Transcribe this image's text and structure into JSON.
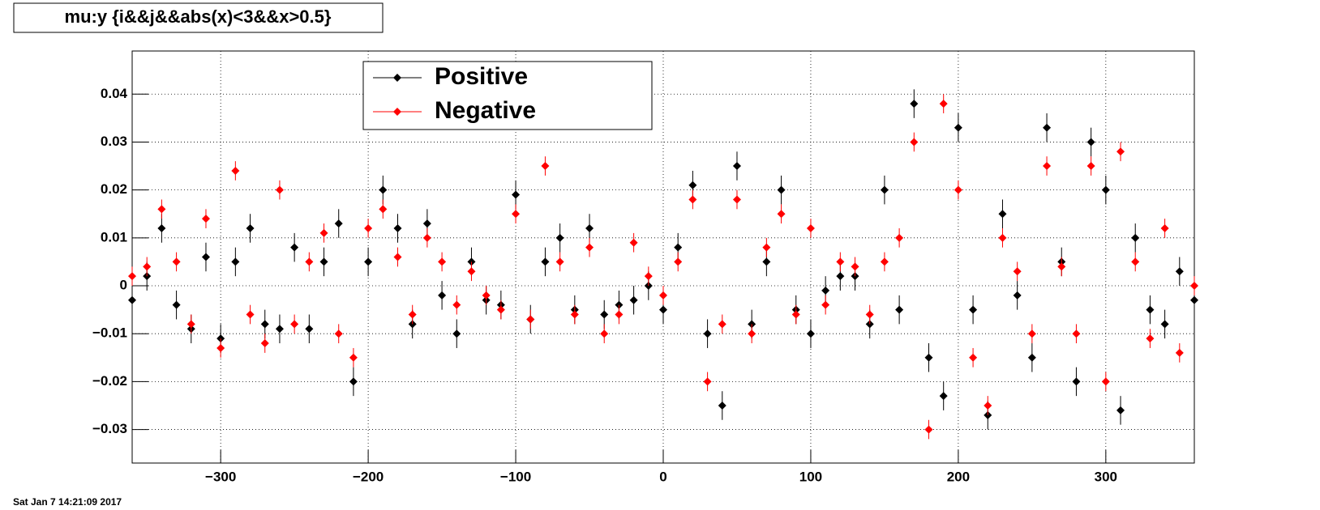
{
  "chart_data": {
    "type": "scatter",
    "title": "mu:y {i&&j&&abs(x)<3&&x>0.5}",
    "footer": "Sat Jan  7 14:21:09 2017",
    "x": [
      -360,
      -350,
      -340,
      -330,
      -320,
      -310,
      -300,
      -290,
      -280,
      -270,
      -260,
      -250,
      -240,
      -230,
      -220,
      -210,
      -200,
      -190,
      -180,
      -170,
      -160,
      -150,
      -140,
      -130,
      -120,
      -110,
      -100,
      -90,
      -80,
      -70,
      -60,
      -50,
      -40,
      -30,
      -20,
      -10,
      0,
      10,
      20,
      30,
      40,
      50,
      60,
      70,
      80,
      90,
      100,
      110,
      120,
      130,
      140,
      150,
      160,
      170,
      180,
      190,
      200,
      210,
      220,
      230,
      240,
      250,
      260,
      270,
      280,
      290,
      300,
      310,
      320,
      330,
      340,
      350,
      360
    ],
    "series": [
      {
        "name": "Positive",
        "color": "#000000",
        "values": [
          -0.003,
          0.002,
          0.012,
          -0.004,
          -0.009,
          0.006,
          -0.011,
          0.005,
          0.012,
          -0.008,
          -0.009,
          0.008,
          -0.009,
          0.005,
          0.013,
          -0.02,
          0.005,
          0.02,
          0.012,
          -0.008,
          0.013,
          -0.002,
          -0.01,
          0.005,
          -0.003,
          -0.004,
          0.019,
          -0.007,
          0.005,
          0.01,
          -0.005,
          0.012,
          -0.006,
          -0.004,
          -0.003,
          0,
          -0.005,
          0.008,
          0.021,
          -0.01,
          -0.025,
          0.025,
          -0.008,
          0.005,
          0.02,
          -0.005,
          -0.01,
          -0.001,
          0.002,
          0.002,
          -0.008,
          0.02,
          -0.005,
          0.038,
          -0.015,
          -0.023,
          0.033,
          -0.005,
          -0.027,
          0.015,
          -0.002,
          -0.015,
          0.033,
          0.005,
          -0.02,
          0.03,
          0.02,
          -0.026,
          0.01,
          -0.005,
          -0.008,
          0.003,
          -0.003
        ],
        "errors": [
          0.003,
          0.003,
          0.003,
          0.003,
          0.003,
          0.003,
          0.003,
          0.003,
          0.003,
          0.003,
          0.003,
          0.003,
          0.003,
          0.003,
          0.003,
          0.003,
          0.003,
          0.003,
          0.003,
          0.003,
          0.003,
          0.003,
          0.003,
          0.003,
          0.003,
          0.003,
          0.003,
          0.003,
          0.003,
          0.003,
          0.003,
          0.003,
          0.003,
          0.003,
          0.003,
          0.003,
          0.003,
          0.003,
          0.003,
          0.003,
          0.003,
          0.003,
          0.003,
          0.003,
          0.003,
          0.003,
          0.003,
          0.003,
          0.003,
          0.003,
          0.003,
          0.003,
          0.003,
          0.003,
          0.003,
          0.003,
          0.003,
          0.003,
          0.003,
          0.003,
          0.003,
          0.003,
          0.003,
          0.003,
          0.003,
          0.003,
          0.003,
          0.003,
          0.003,
          0.003,
          0.003,
          0.003,
          0.003
        ]
      },
      {
        "name": "Negative",
        "color": "#ff0000",
        "values": [
          0.002,
          0.004,
          0.016,
          0.005,
          -0.008,
          0.014,
          -0.013,
          0.024,
          -0.006,
          -0.012,
          0.02,
          -0.008,
          0.005,
          0.011,
          -0.01,
          -0.015,
          0.012,
          0.016,
          0.006,
          -0.006,
          0.01,
          0.005,
          -0.004,
          0.003,
          -0.002,
          -0.005,
          0.015,
          -0.007,
          0.025,
          0.005,
          -0.006,
          0.008,
          -0.01,
          -0.006,
          0.009,
          0.002,
          -0.002,
          0.005,
          0.018,
          -0.02,
          -0.008,
          0.018,
          -0.01,
          0.008,
          0.015,
          -0.006,
          0.012,
          -0.004,
          0.005,
          0.004,
          -0.006,
          0.005,
          0.01,
          0.03,
          -0.03,
          0.038,
          0.02,
          -0.015,
          -0.025,
          0.01,
          0.003,
          -0.01,
          0.025,
          0.004,
          -0.01,
          0.025,
          -0.02,
          0.028,
          0.005,
          -0.011,
          0.012,
          -0.014,
          0
        ],
        "errors": [
          0.002,
          0.002,
          0.002,
          0.002,
          0.002,
          0.002,
          0.002,
          0.002,
          0.002,
          0.002,
          0.002,
          0.002,
          0.002,
          0.002,
          0.002,
          0.002,
          0.002,
          0.002,
          0.002,
          0.002,
          0.002,
          0.002,
          0.002,
          0.002,
          0.002,
          0.002,
          0.002,
          0.002,
          0.002,
          0.002,
          0.002,
          0.002,
          0.002,
          0.002,
          0.002,
          0.002,
          0.002,
          0.002,
          0.002,
          0.002,
          0.002,
          0.002,
          0.002,
          0.002,
          0.002,
          0.002,
          0.002,
          0.002,
          0.002,
          0.002,
          0.002,
          0.002,
          0.002,
          0.002,
          0.002,
          0.002,
          0.002,
          0.002,
          0.002,
          0.002,
          0.002,
          0.002,
          0.002,
          0.002,
          0.002,
          0.002,
          0.002,
          0.002,
          0.002,
          0.002,
          0.002,
          0.002,
          0.002
        ]
      }
    ],
    "xlim": [
      -360,
      360
    ],
    "xticks": [
      {
        "value": -300,
        "label": "−300"
      },
      {
        "value": -200,
        "label": "−200"
      },
      {
        "value": -100,
        "label": "−100"
      },
      0,
      100,
      200,
      300
    ],
    "ylim": [
      -0.037,
      0.049
    ],
    "yticks": [
      {
        "value": -0.03,
        "label": "−0.03"
      },
      {
        "value": -0.02,
        "label": "−0.02"
      },
      {
        "value": -0.01,
        "label": "−0.01"
      },
      0,
      0.01,
      0.02,
      0.03,
      0.04
    ],
    "grid": true,
    "legend": "top-left"
  }
}
